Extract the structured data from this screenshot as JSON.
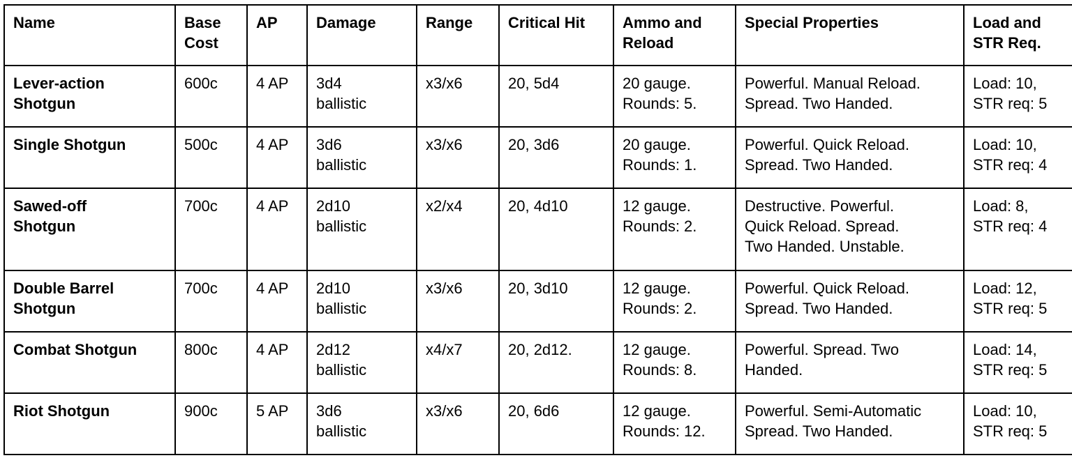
{
  "table": {
    "headers": {
      "name": "Name",
      "cost_line1": "Base",
      "cost_line2": "Cost",
      "ap": "AP",
      "damage": "Damage",
      "range": "Range",
      "critical": "Critical Hit",
      "ammo_line1": "Ammo and",
      "ammo_line2": "Reload",
      "special": "Special Properties",
      "load_line1": "Load and",
      "load_line2": "STR Req."
    },
    "rows": [
      {
        "name": [
          "Lever-action",
          "Shotgun"
        ],
        "cost": "600c",
        "ap": "4 AP",
        "damage": [
          "3d4",
          "ballistic"
        ],
        "range": "x3/x6",
        "critical": "20, 5d4",
        "ammo": [
          "20 gauge.",
          "Rounds: 5."
        ],
        "special": [
          "Powerful. Manual Reload.",
          "Spread. Two Handed."
        ],
        "load": [
          "Load: 10,",
          "STR req: 5"
        ]
      },
      {
        "name": [
          "Single Shotgun"
        ],
        "cost": "500c",
        "ap": "4 AP",
        "damage": [
          "3d6",
          "ballistic"
        ],
        "range": "x3/x6",
        "critical": "20, 3d6",
        "ammo": [
          "20 gauge.",
          "Rounds: 1."
        ],
        "special": [
          "Powerful. Quick Reload.",
          "Spread. Two Handed."
        ],
        "load": [
          "Load: 10,",
          "STR req: 4"
        ]
      },
      {
        "name": [
          "Sawed-off",
          "Shotgun"
        ],
        "cost": "700c",
        "ap": "4 AP",
        "damage": [
          "2d10",
          "ballistic"
        ],
        "range": "x2/x4",
        "critical": "20, 4d10",
        "ammo": [
          "12 gauge.",
          "Rounds: 2."
        ],
        "special": [
          "Destructive. Powerful.",
          "Quick Reload. Spread.",
          "Two Handed. Unstable."
        ],
        "load": [
          "Load: 8,",
          "STR req: 4"
        ]
      },
      {
        "name": [
          "Double Barrel",
          "Shotgun"
        ],
        "cost": "700c",
        "ap": "4 AP",
        "damage": [
          "2d10",
          "ballistic"
        ],
        "range": "x3/x6",
        "critical": "20, 3d10",
        "ammo": [
          "12 gauge.",
          "Rounds: 2."
        ],
        "special": [
          "Powerful. Quick Reload.",
          "Spread. Two Handed."
        ],
        "load": [
          "Load: 12,",
          "STR req: 5"
        ]
      },
      {
        "name": [
          "Combat Shotgun"
        ],
        "cost": "800c",
        "ap": "4 AP",
        "damage": [
          "2d12",
          "ballistic"
        ],
        "range": "x4/x7",
        "critical": "20, 2d12.",
        "ammo": [
          "12 gauge.",
          "Rounds: 8."
        ],
        "special": [
          "Powerful. Spread. Two",
          "Handed."
        ],
        "load": [
          "Load: 14,",
          "STR req: 5"
        ]
      },
      {
        "name": [
          "Riot Shotgun"
        ],
        "cost": "900c",
        "ap": "5 AP",
        "damage": [
          "3d6",
          "ballistic"
        ],
        "range": "x3/x6",
        "critical": "20, 6d6",
        "ammo": [
          "12 gauge.",
          "Rounds: 12."
        ],
        "special": [
          "Powerful. Semi-Automatic",
          "Spread. Two Handed."
        ],
        "load": [
          "Load: 10,",
          "STR req: 5"
        ]
      }
    ]
  }
}
